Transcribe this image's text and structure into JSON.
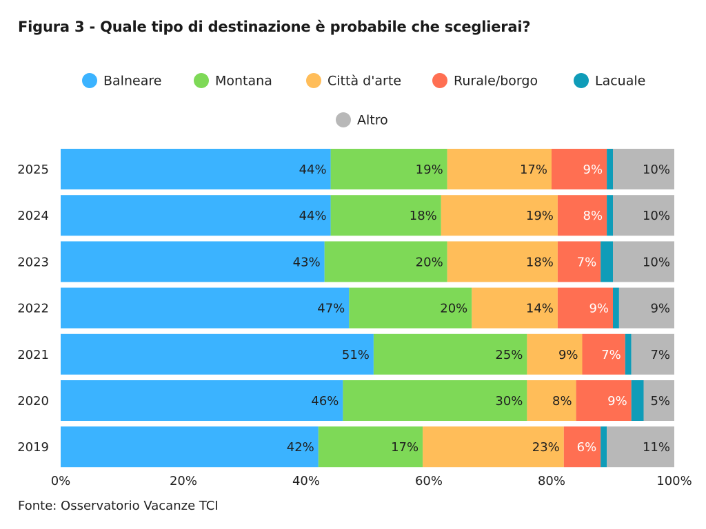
{
  "title": "Figura 3 - Quale tipo di destinazione è probabile che sceglierai?",
  "source": "Fonte: Osservatorio Vacanze TCI",
  "chart_data": {
    "type": "bar",
    "orientation": "horizontal",
    "stacked": "percent",
    "categories": [
      "2025",
      "2024",
      "2023",
      "2022",
      "2021",
      "2020",
      "2019"
    ],
    "series": [
      {
        "name": "Balneare",
        "color": "#3bb3ff",
        "values": [
          44,
          44,
          43,
          47,
          51,
          46,
          42
        ],
        "labels": [
          "44%",
          "44%",
          "43%",
          "47%",
          "51%",
          "46%",
          "42%"
        ]
      },
      {
        "name": "Montana",
        "color": "#7ed957",
        "values": [
          19,
          18,
          20,
          20,
          25,
          30,
          17
        ],
        "labels": [
          "19%",
          "18%",
          "20%",
          "20%",
          "25%",
          "30%",
          "17%"
        ]
      },
      {
        "name": "Città d'arte",
        "color": "#ffbd59",
        "values": [
          17,
          19,
          18,
          14,
          9,
          8,
          23
        ],
        "labels": [
          "17%",
          "19%",
          "18%",
          "14%",
          "9%",
          "8%",
          "23%"
        ]
      },
      {
        "name": "Rurale/borgo",
        "color": "#ff6f52",
        "values": [
          9,
          8,
          7,
          9,
          7,
          9,
          6
        ],
        "labels": [
          "9%",
          "8%",
          "7%",
          "9%",
          "7%",
          "9%",
          "6%"
        ]
      },
      {
        "name": "Lacuale",
        "color": "#0f9cb8",
        "values": [
          1,
          1,
          2,
          1,
          1,
          2,
          1
        ],
        "labels": [
          "",
          "",
          "",
          "",
          "",
          "",
          ""
        ]
      },
      {
        "name": "Altro",
        "color": "#b8b8b8",
        "values": [
          10,
          10,
          10,
          9,
          7,
          5,
          11
        ],
        "labels": [
          "10%",
          "10%",
          "10%",
          "9%",
          "7%",
          "5%",
          "11%"
        ]
      }
    ],
    "xlim": [
      0,
      100
    ],
    "xticks": [
      "0%",
      "20%",
      "40%",
      "60%",
      "80%",
      "100%"
    ],
    "legend": "top",
    "grid": false
  }
}
